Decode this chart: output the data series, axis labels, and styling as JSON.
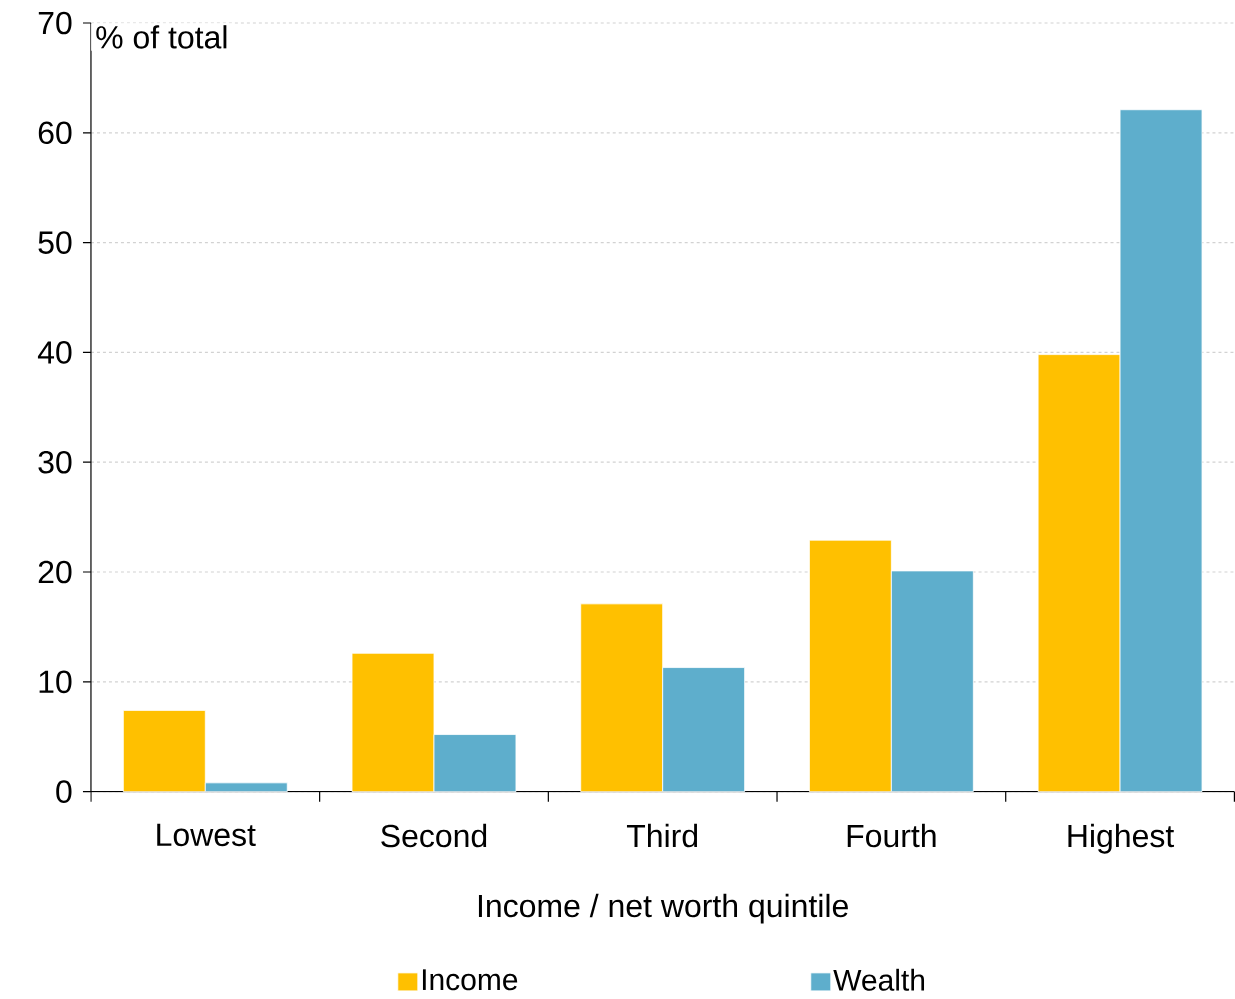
{
  "chart_data": {
    "type": "bar",
    "xlabel": "Income / net worth quintile",
    "ylabel": "% of total",
    "categories": [
      "Lowest",
      "Second",
      "Third",
      "Fourth",
      "Highest"
    ],
    "series": [
      {
        "name": "Income",
        "color": "#ffc000",
        "values": [
          7.4,
          12.6,
          17.1,
          22.9,
          39.8
        ]
      },
      {
        "name": "Wealth",
        "color": "#5eaecc",
        "values": [
          0.8,
          5.2,
          11.3,
          20.1,
          62.1
        ]
      }
    ],
    "ylim": [
      0,
      70
    ],
    "yticks": [
      0,
      10,
      20,
      30,
      40,
      50,
      60,
      70
    ],
    "grid": "y",
    "legend": "bottom"
  }
}
